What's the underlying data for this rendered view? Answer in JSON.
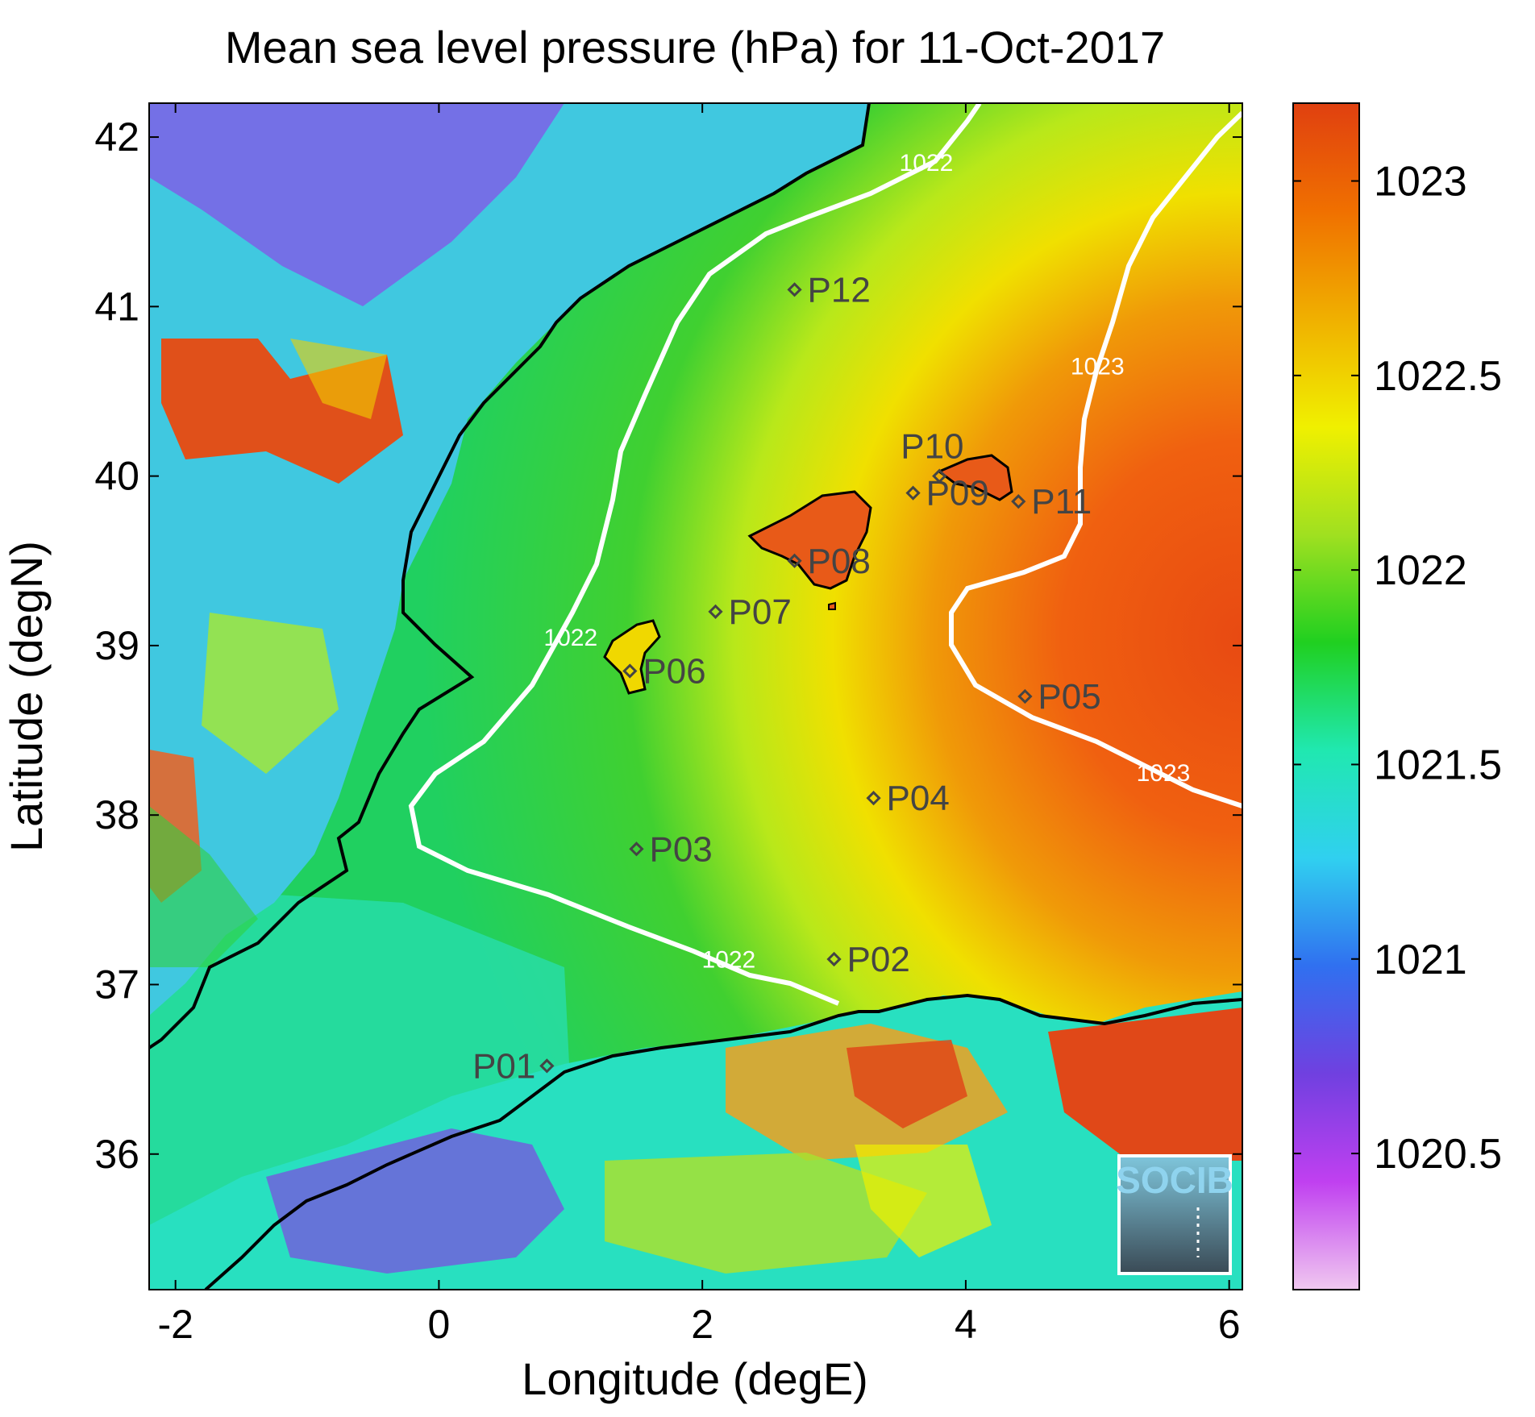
{
  "title": "Mean sea level pressure (hPa) for 11-Oct-2017",
  "chart_data": {
    "type": "heatmap",
    "map_type": "filled contour map with coastlines",
    "title": "Mean sea level pressure (hPa) for 11-Oct-2017",
    "xlabel": "Longitude (degE)",
    "ylabel": "Latitude (degN)",
    "xlim": [
      -2.2,
      6.1
    ],
    "ylim": [
      35.2,
      42.2
    ],
    "x_ticks": [
      -2,
      0,
      2,
      4,
      6
    ],
    "x_tick_labels": [
      "-2",
      "0",
      "2",
      "4",
      "6"
    ],
    "y_ticks": [
      36,
      37,
      38,
      39,
      40,
      41,
      42
    ],
    "y_tick_labels": [
      "36",
      "37",
      "38",
      "39",
      "40",
      "41",
      "42"
    ],
    "colorbar": {
      "range": [
        1020.15,
        1023.2
      ],
      "ticks": [
        1020.5,
        1021,
        1021.5,
        1022,
        1022.5,
        1023
      ],
      "tick_labels": [
        "1020.5",
        "1021",
        "1021.5",
        "1022",
        "1022.5",
        "1023"
      ],
      "colors": [
        "#f0c8f0",
        "#c040f0",
        "#7040e0",
        "#3070f0",
        "#30d0f0",
        "#20e8b0",
        "#20d020",
        "#a0e020",
        "#f0f000",
        "#f0b000",
        "#f07000",
        "#e04010"
      ]
    },
    "contours": [
      {
        "level": 1022,
        "label": "1022",
        "label_positions": [
          [
            3.7,
            41.8
          ],
          [
            1.0,
            39.0
          ],
          [
            2.2,
            37.1
          ]
        ]
      },
      {
        "level": 1023,
        "label": "1023",
        "label_positions": [
          [
            5.0,
            40.6
          ],
          [
            5.5,
            38.2
          ]
        ]
      }
    ],
    "stations": [
      {
        "name": "P01",
        "lon": 0.82,
        "lat": 36.52
      },
      {
        "name": "P02",
        "lon": 3.0,
        "lat": 37.15
      },
      {
        "name": "P03",
        "lon": 1.5,
        "lat": 37.8
      },
      {
        "name": "P04",
        "lon": 3.3,
        "lat": 38.1
      },
      {
        "name": "P05",
        "lon": 4.45,
        "lat": 38.7
      },
      {
        "name": "P06",
        "lon": 1.45,
        "lat": 38.85
      },
      {
        "name": "P07",
        "lon": 2.1,
        "lat": 39.2
      },
      {
        "name": "P08",
        "lon": 2.7,
        "lat": 39.5
      },
      {
        "name": "P09",
        "lon": 3.6,
        "lat": 39.9
      },
      {
        "name": "P10",
        "lon": 3.8,
        "lat": 40.0
      },
      {
        "name": "P11",
        "lon": 4.4,
        "lat": 39.85
      },
      {
        "name": "P12",
        "lon": 2.7,
        "lat": 41.1
      }
    ]
  },
  "logo": {
    "text": "SOCIB"
  }
}
